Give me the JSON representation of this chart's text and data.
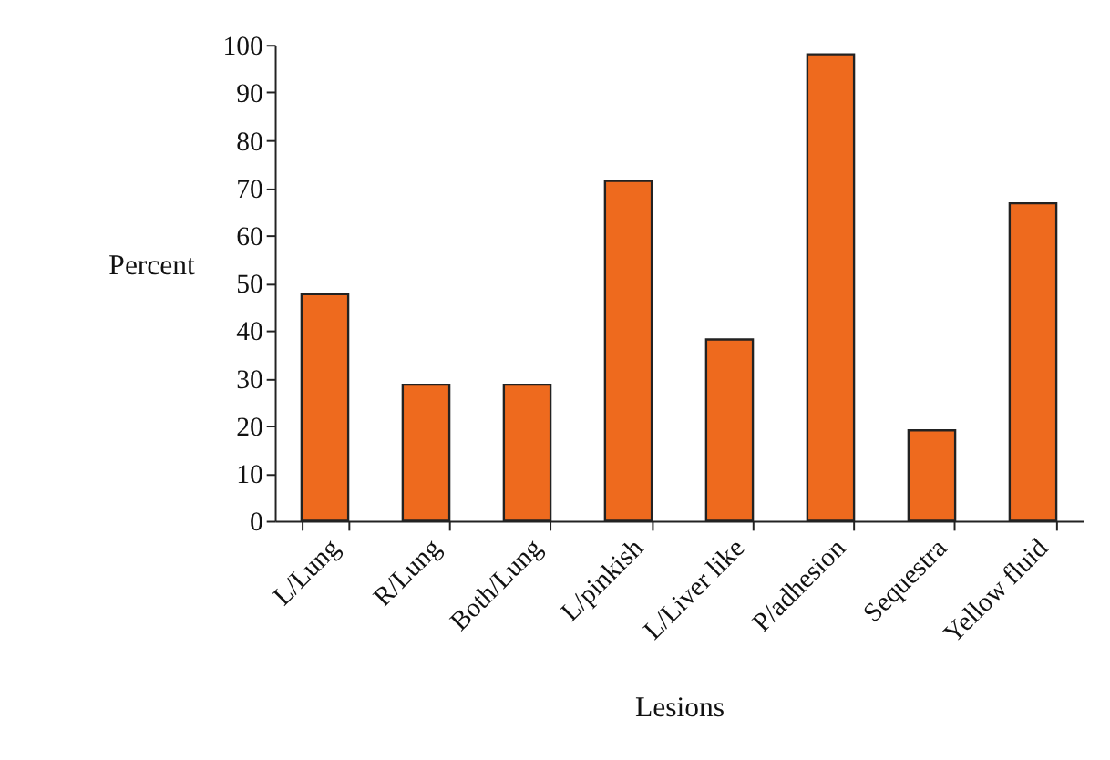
{
  "chart_data": {
    "type": "bar",
    "xlabel": "Lesions",
    "ylabel": "Percent",
    "categories": [
      "L/Lung",
      "R/Lung",
      "Both/Lung",
      "L/pinkish",
      "L/Liver like",
      "P/adhesion",
      "Sequestra",
      "Yellow fluid"
    ],
    "values": [
      47.6,
      28.6,
      28.6,
      71.4,
      38.1,
      98,
      19,
      66.7
    ],
    "color": "#ee6a1e",
    "ylim": [
      0,
      100
    ],
    "yticks": [
      0,
      10,
      20,
      30,
      40,
      50,
      60,
      70,
      80,
      90,
      100
    ],
    "grid": false
  }
}
